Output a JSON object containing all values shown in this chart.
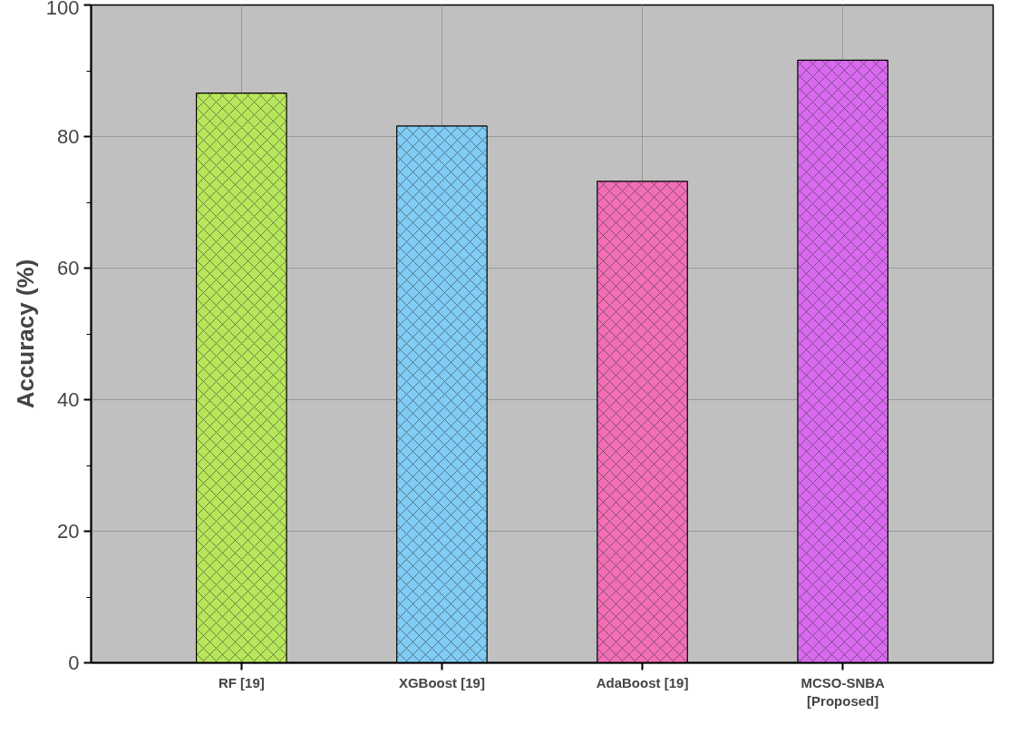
{
  "chart_data": {
    "type": "bar",
    "ylabel": "Accuracy (%)",
    "categories": [
      "RF [19]",
      "XGBoost [19]",
      "AdaBoost [19]",
      "MCSO-SNBA\n[Proposed]"
    ],
    "values": [
      86.6,
      81.6,
      73.2,
      91.6
    ],
    "colors": [
      "#b8e65a",
      "#80ccf5",
      "#f26fb6",
      "#d96af0"
    ],
    "ylim": [
      0,
      100
    ],
    "yticks": [
      0,
      20,
      40,
      60,
      80,
      100
    ],
    "grid": true
  }
}
